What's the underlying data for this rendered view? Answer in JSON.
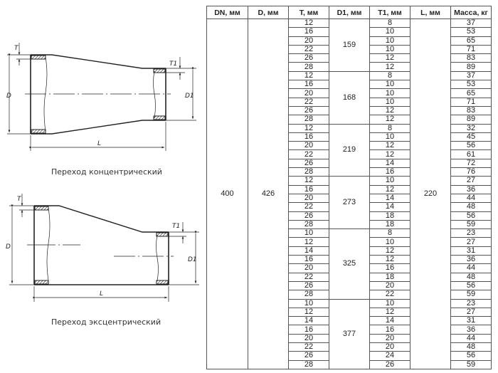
{
  "drawings": {
    "concentric": {
      "caption": "Переход концентрический",
      "labels": {
        "T": "T",
        "T1": "T1",
        "D": "D",
        "D1": "D1",
        "L": "L"
      }
    },
    "eccentric": {
      "caption": "Переход эксцентрический",
      "labels": {
        "T": "T",
        "T1": "T1",
        "D": "D",
        "D1": "D1",
        "L": "L"
      }
    }
  },
  "table": {
    "headers": [
      "DN, мм",
      "D, мм",
      "T, мм",
      "D1, мм",
      "T1, мм",
      "L, мм",
      "Масса, кг"
    ],
    "DN": "400",
    "D": "426",
    "L": "220",
    "groups": [
      {
        "D1": "159",
        "rows": [
          [
            "12",
            "8",
            "37"
          ],
          [
            "16",
            "10",
            "53"
          ],
          [
            "20",
            "10",
            "65"
          ],
          [
            "22",
            "10",
            "71"
          ],
          [
            "26",
            "12",
            "83"
          ],
          [
            "28",
            "12",
            "89"
          ]
        ]
      },
      {
        "D1": "168",
        "rows": [
          [
            "12",
            "8",
            "37"
          ],
          [
            "16",
            "10",
            "53"
          ],
          [
            "20",
            "10",
            "65"
          ],
          [
            "22",
            "10",
            "71"
          ],
          [
            "26",
            "12",
            "83"
          ],
          [
            "28",
            "12",
            "89"
          ]
        ]
      },
      {
        "D1": "219",
        "rows": [
          [
            "12",
            "8",
            "32"
          ],
          [
            "16",
            "10",
            "45"
          ],
          [
            "20",
            "12",
            "56"
          ],
          [
            "22",
            "12",
            "61"
          ],
          [
            "26",
            "14",
            "72"
          ],
          [
            "28",
            "16",
            "76"
          ]
        ]
      },
      {
        "D1": "273",
        "rows": [
          [
            "12",
            "10",
            "27"
          ],
          [
            "16",
            "12",
            "36"
          ],
          [
            "20",
            "14",
            "44"
          ],
          [
            "22",
            "14",
            "48"
          ],
          [
            "26",
            "18",
            "56"
          ],
          [
            "28",
            "18",
            "59"
          ]
        ]
      },
      {
        "D1": "325",
        "rows": [
          [
            "10",
            "8",
            "23"
          ],
          [
            "12",
            "10",
            "27"
          ],
          [
            "14",
            "12",
            "31"
          ],
          [
            "16",
            "12",
            "36"
          ],
          [
            "20",
            "16",
            "44"
          ],
          [
            "22",
            "18",
            "48"
          ],
          [
            "26",
            "20",
            "56"
          ],
          [
            "28",
            "22",
            "59"
          ]
        ]
      },
      {
        "D1": "377",
        "rows": [
          [
            "10",
            "10",
            "23"
          ],
          [
            "12",
            "12",
            "27"
          ],
          [
            "14",
            "14",
            "31"
          ],
          [
            "16",
            "16",
            "36"
          ],
          [
            "20",
            "20",
            "44"
          ],
          [
            "22",
            "20",
            "48"
          ],
          [
            "26",
            "24",
            "56"
          ],
          [
            "28",
            "26",
            "59"
          ]
        ]
      }
    ]
  }
}
